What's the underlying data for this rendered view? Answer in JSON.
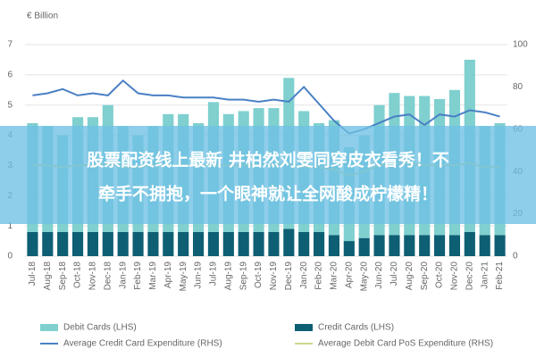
{
  "chart_data": {
    "type": "bar_line",
    "y_label": "€ Billion",
    "categories": [
      "Jul-18",
      "Aug-18",
      "Sep-18",
      "Oct-18",
      "Nov-18",
      "Dec-18",
      "Jan-19",
      "Feb-19",
      "Mar-19",
      "Apr-19",
      "May-19",
      "Jun-19",
      "Jul-19",
      "Aug-19",
      "Sep-19",
      "Oct-19",
      "Nov-19",
      "Dec-19",
      "Jan-20",
      "Feb-20",
      "Mar-20",
      "Apr-20",
      "May-20",
      "Jun-20",
      "Jul-20",
      "Aug-20",
      "Sep-20",
      "Oct-20",
      "Nov-20",
      "Dec-20",
      "Jan-21",
      "Feb-21"
    ],
    "series": [
      {
        "name": "Credit Cards (LHS)",
        "color": "#0e5f74",
        "kind": "bar",
        "values": [
          0.8,
          0.8,
          0.8,
          0.8,
          0.8,
          0.8,
          0.8,
          0.8,
          0.8,
          0.8,
          0.8,
          0.8,
          0.8,
          0.8,
          0.8,
          0.8,
          0.8,
          0.9,
          0.8,
          0.8,
          0.7,
          0.5,
          0.6,
          0.7,
          0.7,
          0.7,
          0.7,
          0.7,
          0.7,
          0.8,
          0.7,
          0.7
        ]
      },
      {
        "name": "Debit Cards (LHS)",
        "color": "#7fd0cf",
        "kind": "bar",
        "values": [
          3.6,
          3.5,
          3.2,
          3.8,
          3.8,
          4.2,
          3.5,
          3.2,
          3.5,
          3.9,
          3.9,
          3.6,
          4.3,
          3.9,
          4.0,
          4.1,
          4.1,
          5.0,
          4.0,
          3.6,
          3.8,
          3.1,
          3.4,
          4.3,
          4.7,
          4.6,
          4.6,
          4.5,
          4.8,
          5.7,
          3.6,
          3.7
        ]
      },
      {
        "name": "Average Credit Card Expenditure (RHS)",
        "color": "#4a80c4",
        "kind": "line",
        "axis": "y2",
        "values": [
          76,
          77,
          79,
          76,
          77,
          76,
          83,
          77,
          76,
          76,
          75,
          75,
          75,
          74,
          74,
          73,
          74,
          73,
          80,
          72,
          64,
          58,
          60,
          63,
          66,
          67,
          62,
          67,
          66,
          69,
          68,
          66
        ]
      },
      {
        "name": "Average Debit Card PoS Expenditure (RHS)",
        "color": "#c9d98c",
        "kind": "line",
        "axis": "y2",
        "values": [
          43,
          43,
          42,
          43,
          43,
          44,
          42,
          42,
          43,
          43,
          43,
          43,
          43,
          43,
          43,
          43,
          43,
          44,
          42,
          42,
          41,
          38,
          40,
          43,
          44,
          44,
          43,
          43,
          43,
          44,
          42,
          42
        ]
      }
    ],
    "ylim": [
      0,
      7
    ],
    "yticks": [
      0,
      1,
      2,
      3,
      4,
      5,
      6,
      7
    ],
    "y2lim": [
      0,
      100
    ],
    "y2ticks": [
      0,
      20,
      40,
      60,
      80,
      100
    ],
    "grid": true,
    "legend": "bottom"
  },
  "banner": {
    "lines": [
      "股票配资线上最新 井柏然刘雯同穿皮衣看秀！不",
      "牵手不拥抱，一个眼神就让全网酸成柠檬精！"
    ]
  }
}
